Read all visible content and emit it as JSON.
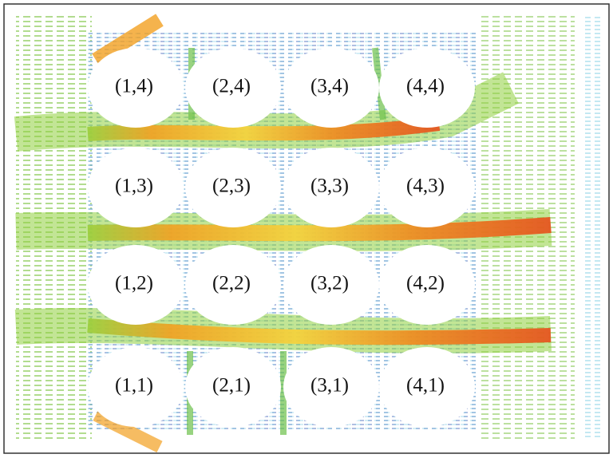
{
  "grid": {
    "rows": [
      [
        "(1,4)",
        "(2,4)",
        "(3,4)",
        "(4,4)"
      ],
      [
        "(1,3)",
        "(2,3)",
        "(3,3)",
        "(4,3)"
      ],
      [
        "(1,2)",
        "(2,2)",
        "(3,2)",
        "(4,2)"
      ],
      [
        "(1,1)",
        "(2,1)",
        "(3,1)",
        "(4,1)"
      ]
    ]
  }
}
